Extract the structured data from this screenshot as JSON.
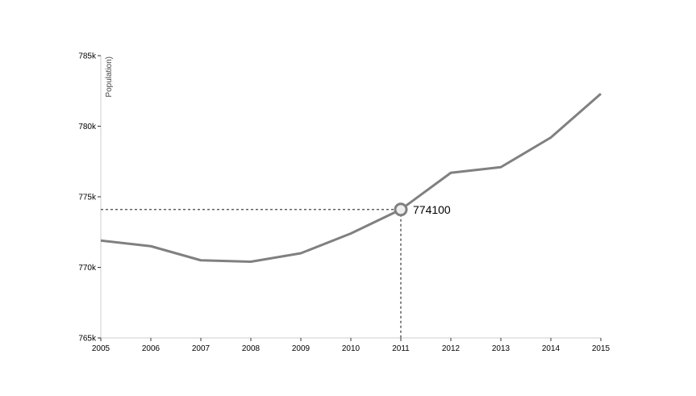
{
  "chart_data": {
    "type": "line",
    "title": "",
    "xlabel": "",
    "ylabel": "Population)",
    "x": [
      2005,
      2006,
      2007,
      2008,
      2009,
      2010,
      2011,
      2012,
      2013,
      2014,
      2015
    ],
    "series": [
      {
        "values": [
          771900,
          771500,
          770500,
          770400,
          771000,
          772400,
          774100,
          776700,
          777100,
          779200,
          782300
        ]
      }
    ],
    "xlim": [
      2005,
      2015
    ],
    "ylim": [
      765000,
      785000
    ],
    "y_ticks": [
      765000,
      770000,
      775000,
      780000,
      785000
    ],
    "y_tick_labels": [
      "765k",
      "770k",
      "775k",
      "780k",
      "785k"
    ],
    "x_tick_labels": [
      "2005",
      "2006",
      "2007",
      "2008",
      "2009",
      "2010",
      "2011",
      "2012",
      "2013",
      "2014",
      "2015"
    ],
    "grid": false,
    "highlight": {
      "x": 2011,
      "y": 774100,
      "label": "774100"
    },
    "colors": {
      "line": "#808080",
      "axis": "#cccccc",
      "guide": "#444444"
    }
  }
}
